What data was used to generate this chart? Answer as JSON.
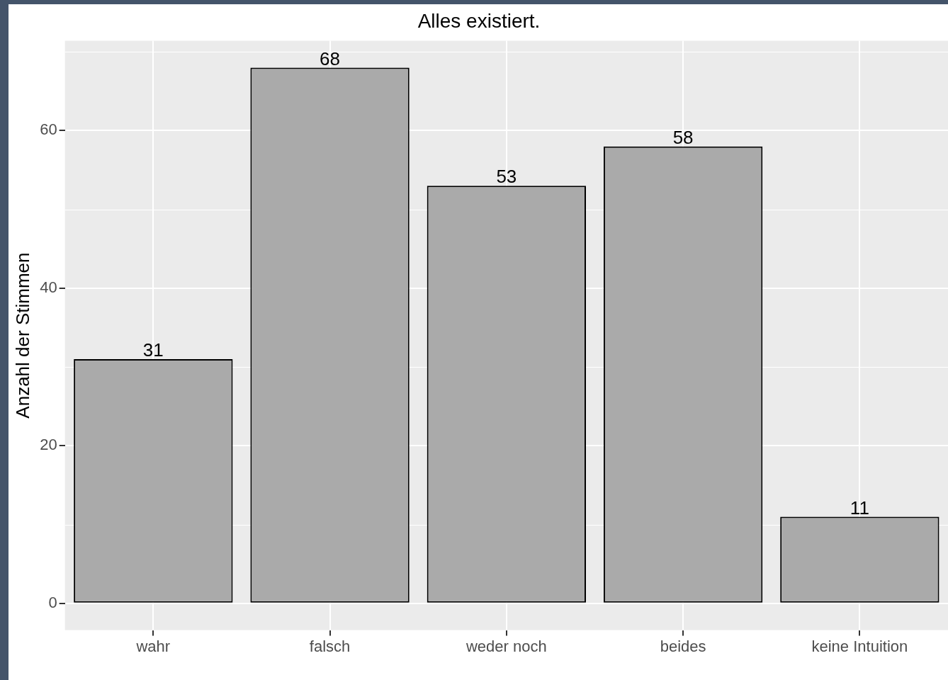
{
  "chart_data": {
    "type": "bar",
    "title": "Alles existiert.",
    "ylabel": "Anzahl der Stimmen",
    "categories": [
      "wahr",
      "falsch",
      "weder noch",
      "beides",
      "keine Intuition"
    ],
    "values": [
      31,
      68,
      53,
      58,
      11
    ],
    "color": "#aaaaaa",
    "ylim": [
      -3.4,
      71.4
    ],
    "yticks": [
      0,
      20,
      40,
      60
    ],
    "grid": true,
    "data_labels": true
  }
}
